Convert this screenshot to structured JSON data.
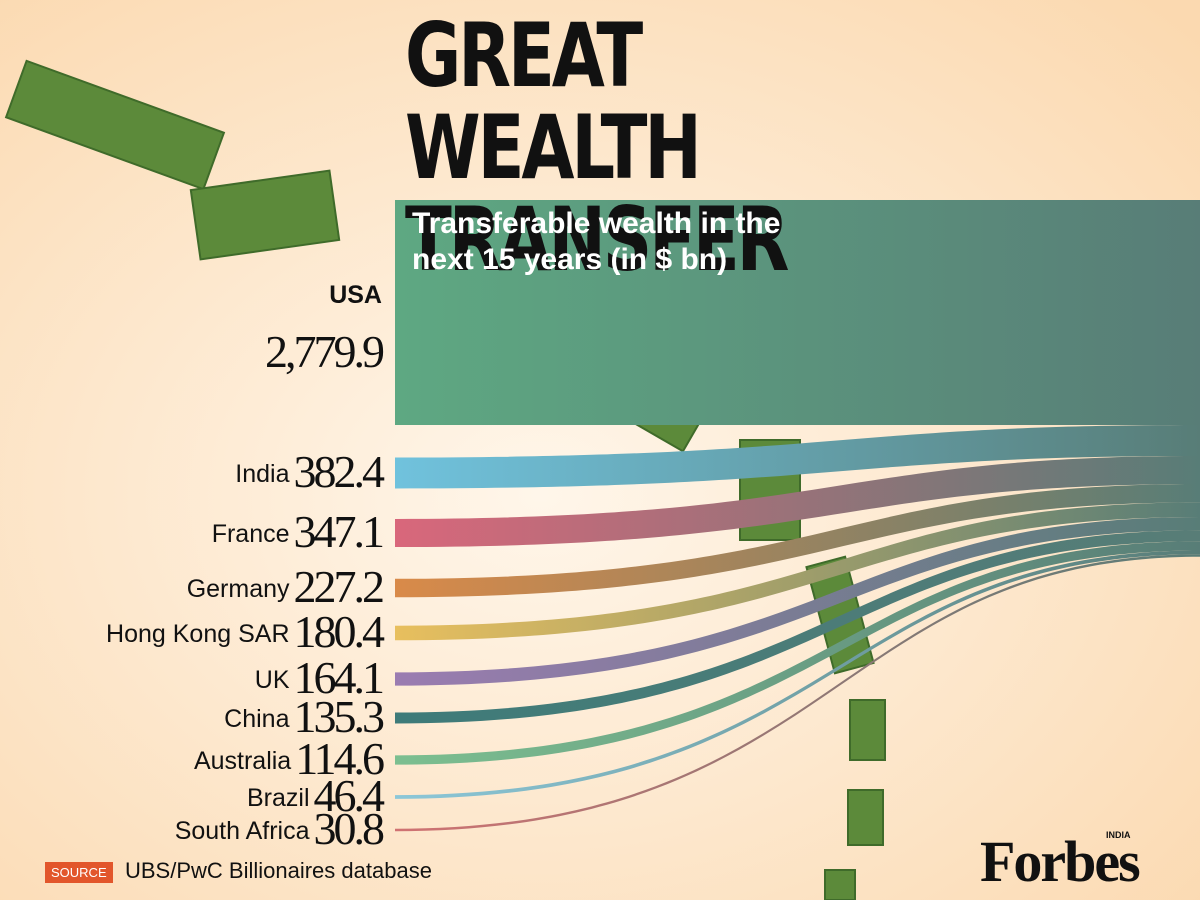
{
  "title": "GREAT WEALTH TRANSFER",
  "chart_data": {
    "type": "flow",
    "subtitle": "Transferable wealth in the next 15 years (in $ bn)",
    "categories": [
      "USA",
      "India",
      "France",
      "Germany",
      "Hong Kong SAR",
      "UK",
      "China",
      "Australia",
      "Brazil",
      "South Africa"
    ],
    "values": [
      2779.9,
      382.4,
      347.1,
      227.2,
      180.4,
      164.1,
      135.3,
      114.6,
      46.4,
      30.8
    ],
    "value_labels": [
      "2,779.9",
      "382.4",
      "347.1",
      "227.2",
      "180.4",
      "164.1",
      "135.3",
      "114.6",
      "46.4",
      "30.8"
    ],
    "colors": [
      "#5ea882",
      "#70c2dd",
      "#d9677b",
      "#d98a49",
      "#e8bf5e",
      "#9b7cb1",
      "#3e7b79",
      "#7cbf90",
      "#8cc7d8",
      "#d07272"
    ]
  },
  "source_tag": "SOURCE",
  "source": "UBS/PwC Billionaires database",
  "logo": "Forbes",
  "logo_sub": "INDIA"
}
